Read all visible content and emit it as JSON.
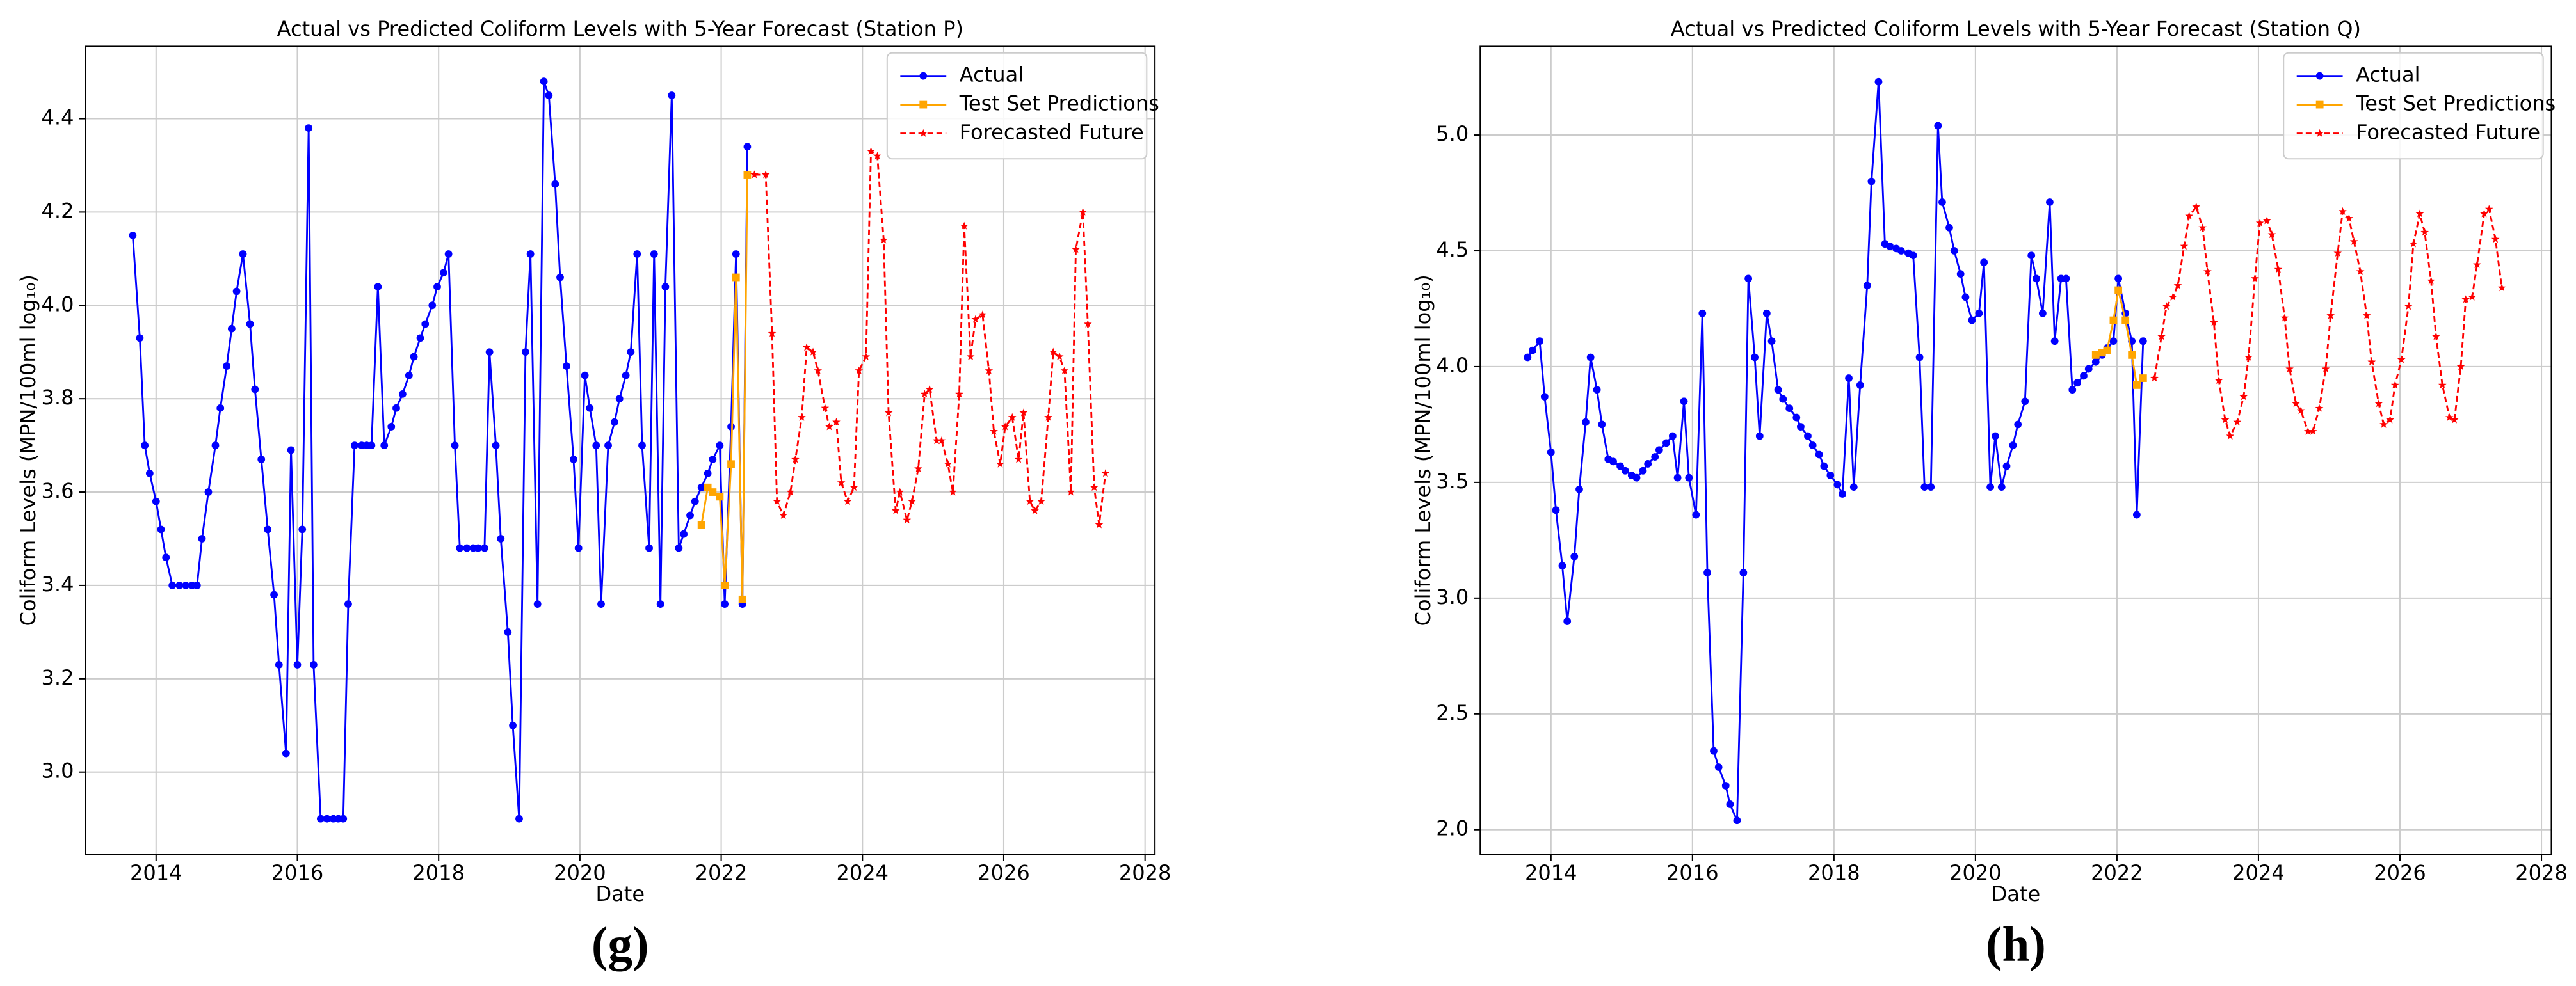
{
  "chart_data": [
    {
      "type": "line",
      "title": "Actual vs Predicted Coliform Levels with 5-Year Forecast (Station P)",
      "x_label": "Date",
      "y_label": "Coliform Levels (MPN/100ml log₁₀)",
      "caption": "(g)",
      "xlim": [
        2013.0,
        2028.14
      ],
      "xticks": [
        2014,
        2016,
        2018,
        2020,
        2022,
        2024,
        2026,
        2028
      ],
      "ylim": [
        2.824,
        4.555
      ],
      "yticks": [
        {
          "value": 3.0,
          "label": "3.0"
        },
        3.2,
        3.4,
        3.6,
        3.8,
        {
          "value": 4.0,
          "label": "4.0"
        },
        4.2,
        4.4
      ],
      "grid": true,
      "legend": "upper right",
      "series": [
        {
          "name": "Actual",
          "color": "#0000ff",
          "marker": "o",
          "linestyle": "solid",
          "x": [
            2013.67,
            2013.77,
            2013.84,
            2013.91,
            2014.0,
            2014.07,
            2014.14,
            2014.23,
            2014.33,
            2014.42,
            2014.51,
            2014.58,
            2014.65,
            2014.74,
            2014.84,
            2014.91,
            2015.0,
            2015.07,
            2015.14,
            2015.23,
            2015.33,
            2015.4,
            2015.49,
            2015.58,
            2015.67,
            2015.74,
            2015.84,
            2015.91,
            2016.0,
            2016.07,
            2016.16,
            2016.23,
            2016.33,
            2016.42,
            2016.51,
            2016.58,
            2016.65,
            2016.72,
            2016.81,
            2016.91,
            2016.98,
            2017.05,
            2017.14,
            2017.23,
            2017.33,
            2017.4,
            2017.49,
            2017.58,
            2017.65,
            2017.74,
            2017.81,
            2017.91,
            2017.98,
            2018.07,
            2018.14,
            2018.23,
            2018.3,
            2018.4,
            2018.49,
            2018.56,
            2018.65,
            2018.72,
            2018.81,
            2018.88,
            2018.98,
            2019.05,
            2019.14,
            2019.23,
            2019.3,
            2019.4,
            2019.49,
            2019.56,
            2019.65,
            2019.72,
            2019.81,
            2019.91,
            2019.98,
            2020.07,
            2020.14,
            2020.23,
            2020.3,
            2020.4,
            2020.49,
            2020.56,
            2020.65,
            2020.72,
            2020.81,
            2020.88,
            2020.98,
            2021.05,
            2021.14,
            2021.21,
            2021.3,
            2021.4,
            2021.47,
            2021.56,
            2021.63,
            2021.72,
            2021.81,
            2021.88,
            2021.98,
            2022.05,
            2022.14,
            2022.21,
            2022.3,
            2022.37
          ],
          "values": [
            4.15,
            3.93,
            3.7,
            3.64,
            3.58,
            3.52,
            3.46,
            3.4,
            3.4,
            3.4,
            3.4,
            3.4,
            3.5,
            3.6,
            3.7,
            3.78,
            3.87,
            3.95,
            4.03,
            4.11,
            3.96,
            3.82,
            3.67,
            3.52,
            3.38,
            3.23,
            3.04,
            3.69,
            3.23,
            3.52,
            4.38,
            3.23,
            2.9,
            2.9,
            2.9,
            2.9,
            2.9,
            3.36,
            3.7,
            3.7,
            3.7,
            3.7,
            4.04,
            3.7,
            3.74,
            3.78,
            3.81,
            3.85,
            3.89,
            3.93,
            3.96,
            4.0,
            4.04,
            4.07,
            4.11,
            3.7,
            3.48,
            3.48,
            3.48,
            3.48,
            3.48,
            3.9,
            3.7,
            3.5,
            3.3,
            3.1,
            2.9,
            3.9,
            4.11,
            3.36,
            4.48,
            4.45,
            4.26,
            4.06,
            3.87,
            3.67,
            3.48,
            3.85,
            3.78,
            3.7,
            3.36,
            3.7,
            3.75,
            3.8,
            3.85,
            3.9,
            4.11,
            3.7,
            3.48,
            4.11,
            3.36,
            4.04,
            4.45,
            3.48,
            3.51,
            3.55,
            3.58,
            3.61,
            3.64,
            3.67,
            3.7,
            3.36,
            3.74,
            4.11,
            3.36,
            4.34
          ]
        },
        {
          "name": "Test Set Predictions",
          "color": "#ffa500",
          "marker": "s",
          "linestyle": "solid",
          "x": [
            2021.72,
            2021.81,
            2021.88,
            2021.98,
            2022.05,
            2022.14,
            2022.21,
            2022.3,
            2022.37
          ],
          "values": [
            3.53,
            3.61,
            3.6,
            3.59,
            3.4,
            3.66,
            4.06,
            3.37,
            4.28
          ]
        },
        {
          "name": "Forecasted Future",
          "color": "#ff0000",
          "marker": "*",
          "linestyle": "dashed",
          "x": [
            2022.47,
            2022.63,
            2022.72,
            2022.79,
            2022.88,
            2022.98,
            2023.05,
            2023.14,
            2023.21,
            2023.3,
            2023.37,
            2023.47,
            2023.53,
            2023.63,
            2023.7,
            2023.79,
            2023.88,
            2023.95,
            2024.05,
            2024.12,
            2024.21,
            2024.3,
            2024.37,
            2024.47,
            2024.53,
            2024.63,
            2024.7,
            2024.79,
            2024.88,
            2024.95,
            2025.05,
            2025.12,
            2025.21,
            2025.28,
            2025.37,
            2025.44,
            2025.53,
            2025.6,
            2025.7,
            2025.79,
            2025.86,
            2025.95,
            2026.02,
            2026.12,
            2026.21,
            2026.28,
            2026.37,
            2026.44,
            2026.53,
            2026.63,
            2026.7,
            2026.79,
            2026.86,
            2026.95,
            2027.02,
            2027.12,
            2027.19,
            2027.28,
            2027.35,
            2027.44
          ],
          "values": [
            4.28,
            4.28,
            3.94,
            3.58,
            3.55,
            3.6,
            3.67,
            3.76,
            3.91,
            3.9,
            3.86,
            3.78,
            3.74,
            3.75,
            3.62,
            3.58,
            3.61,
            3.86,
            3.89,
            4.33,
            4.32,
            4.14,
            3.77,
            3.56,
            3.6,
            3.54,
            3.58,
            3.65,
            3.81,
            3.82,
            3.71,
            3.71,
            3.66,
            3.6,
            3.81,
            4.17,
            3.89,
            3.97,
            3.98,
            3.86,
            3.73,
            3.66,
            3.74,
            3.76,
            3.67,
            3.77,
            3.58,
            3.56,
            3.58,
            3.76,
            3.9,
            3.89,
            3.86,
            3.6,
            4.12,
            4.2,
            3.96,
            3.61,
            3.53,
            3.64
          ]
        }
      ]
    },
    {
      "type": "line",
      "title": "Actual vs Predicted Coliform Levels with 5-Year Forecast (Station Q)",
      "x_label": "Date",
      "y_label": "Coliform Levels (MPN/100ml log₁₀)",
      "caption": "(h)",
      "xlim": [
        2013.0,
        2028.14
      ],
      "xticks": [
        2014,
        2016,
        2018,
        2020,
        2022,
        2024,
        2026,
        2028
      ],
      "ylim": [
        1.894,
        5.383
      ],
      "yticks": [
        {
          "value": 2.0,
          "label": "2.0"
        },
        2.5,
        {
          "value": 3.0,
          "label": "3.0"
        },
        3.5,
        {
          "value": 4.0,
          "label": "4.0"
        },
        4.5,
        {
          "value": 5.0,
          "label": "5.0"
        }
      ],
      "grid": true,
      "legend": "upper right",
      "series": [
        {
          "name": "Actual",
          "color": "#0000ff",
          "marker": "o",
          "linestyle": "solid",
          "x": [
            2013.67,
            2013.74,
            2013.84,
            2013.91,
            2014.0,
            2014.07,
            2014.16,
            2014.23,
            2014.33,
            2014.4,
            2014.49,
            2014.56,
            2014.65,
            2014.72,
            2014.81,
            2014.88,
            2014.98,
            2015.05,
            2015.14,
            2015.21,
            2015.3,
            2015.37,
            2015.47,
            2015.53,
            2015.63,
            2015.72,
            2015.79,
            2015.88,
            2015.95,
            2016.05,
            2016.14,
            2016.21,
            2016.3,
            2016.37,
            2016.47,
            2016.53,
            2016.63,
            2016.72,
            2016.79,
            2016.88,
            2016.95,
            2017.05,
            2017.12,
            2017.21,
            2017.28,
            2017.37,
            2017.47,
            2017.53,
            2017.63,
            2017.7,
            2017.79,
            2017.86,
            2017.95,
            2018.05,
            2018.12,
            2018.21,
            2018.28,
            2018.37,
            2018.47,
            2018.53,
            2018.63,
            2018.72,
            2018.79,
            2018.88,
            2018.95,
            2019.05,
            2019.12,
            2019.21,
            2019.28,
            2019.37,
            2019.47,
            2019.53,
            2019.63,
            2019.7,
            2019.79,
            2019.86,
            2019.95,
            2020.05,
            2020.12,
            2020.21,
            2020.28,
            2020.37,
            2020.44,
            2020.53,
            2020.6,
            2020.7,
            2020.79,
            2020.86,
            2020.95,
            2021.05,
            2021.12,
            2021.21,
            2021.28,
            2021.37,
            2021.44,
            2021.53,
            2021.6,
            2021.7,
            2021.79,
            2021.86,
            2021.95,
            2022.02,
            2022.12,
            2022.21,
            2022.28,
            2022.37
          ],
          "values": [
            4.04,
            4.07,
            4.11,
            3.87,
            3.63,
            3.38,
            3.14,
            2.9,
            3.18,
            3.47,
            3.76,
            4.04,
            3.9,
            3.75,
            3.6,
            3.59,
            3.57,
            3.55,
            3.53,
            3.52,
            3.55,
            3.58,
            3.61,
            3.64,
            3.67,
            3.7,
            3.52,
            3.85,
            3.52,
            3.36,
            4.23,
            3.11,
            2.34,
            2.27,
            2.19,
            2.11,
            2.04,
            3.11,
            4.38,
            4.04,
            3.7,
            4.23,
            4.11,
            3.9,
            3.86,
            3.82,
            3.78,
            3.74,
            3.7,
            3.66,
            3.62,
            3.57,
            3.53,
            3.49,
            3.45,
            3.95,
            3.48,
            3.92,
            4.35,
            4.8,
            5.23,
            4.53,
            4.52,
            4.51,
            4.5,
            4.49,
            4.48,
            4.04,
            3.48,
            3.48,
            5.04,
            4.71,
            4.6,
            4.5,
            4.4,
            4.3,
            4.2,
            4.23,
            4.45,
            3.48,
            3.7,
            3.48,
            3.57,
            3.66,
            3.75,
            3.85,
            4.48,
            4.38,
            4.23,
            4.71,
            4.11,
            4.38,
            4.38,
            3.9,
            3.93,
            3.96,
            3.99,
            4.02,
            4.05,
            4.08,
            4.11,
            4.38,
            4.23,
            4.11,
            3.36,
            4.11
          ]
        },
        {
          "name": "Test Set Predictions",
          "color": "#ffa500",
          "marker": "s",
          "linestyle": "solid",
          "x": [
            2021.7,
            2021.79,
            2021.86,
            2021.95,
            2022.02,
            2022.12,
            2022.21,
            2022.28,
            2022.37
          ],
          "values": [
            4.05,
            4.06,
            4.07,
            4.2,
            4.33,
            4.2,
            4.05,
            3.92,
            3.95
          ]
        },
        {
          "name": "Forecasted Future",
          "color": "#ff0000",
          "marker": "*",
          "linestyle": "dashed",
          "x": [
            2022.53,
            2022.63,
            2022.7,
            2022.79,
            2022.86,
            2022.95,
            2023.02,
            2023.12,
            2023.21,
            2023.28,
            2023.37,
            2023.44,
            2023.53,
            2023.6,
            2023.7,
            2023.79,
            2023.86,
            2023.95,
            2024.02,
            2024.12,
            2024.19,
            2024.28,
            2024.37,
            2024.44,
            2024.53,
            2024.6,
            2024.7,
            2024.77,
            2024.86,
            2024.95,
            2025.02,
            2025.12,
            2025.19,
            2025.28,
            2025.35,
            2025.44,
            2025.53,
            2025.6,
            2025.7,
            2025.77,
            2025.86,
            2025.93,
            2026.02,
            2026.12,
            2026.19,
            2026.28,
            2026.35,
            2026.44,
            2026.51,
            2026.6,
            2026.7,
            2026.77,
            2026.86,
            2026.93,
            2027.02,
            2027.09,
            2027.19,
            2027.26,
            2027.35,
            2027.44
          ],
          "values": [
            3.95,
            4.13,
            4.26,
            4.3,
            4.35,
            4.52,
            4.65,
            4.69,
            4.6,
            4.41,
            4.19,
            3.94,
            3.77,
            3.7,
            3.76,
            3.87,
            4.04,
            4.38,
            4.62,
            4.63,
            4.57,
            4.42,
            4.21,
            3.99,
            3.84,
            3.81,
            3.72,
            3.72,
            3.82,
            3.99,
            4.22,
            4.49,
            4.67,
            4.64,
            4.54,
            4.41,
            4.22,
            4.02,
            3.84,
            3.75,
            3.77,
            3.92,
            4.03,
            4.26,
            4.53,
            4.66,
            4.58,
            4.37,
            4.13,
            3.92,
            3.78,
            3.77,
            4.0,
            4.29,
            4.3,
            4.44,
            4.66,
            4.68,
            4.55,
            4.34
          ]
        }
      ]
    }
  ]
}
